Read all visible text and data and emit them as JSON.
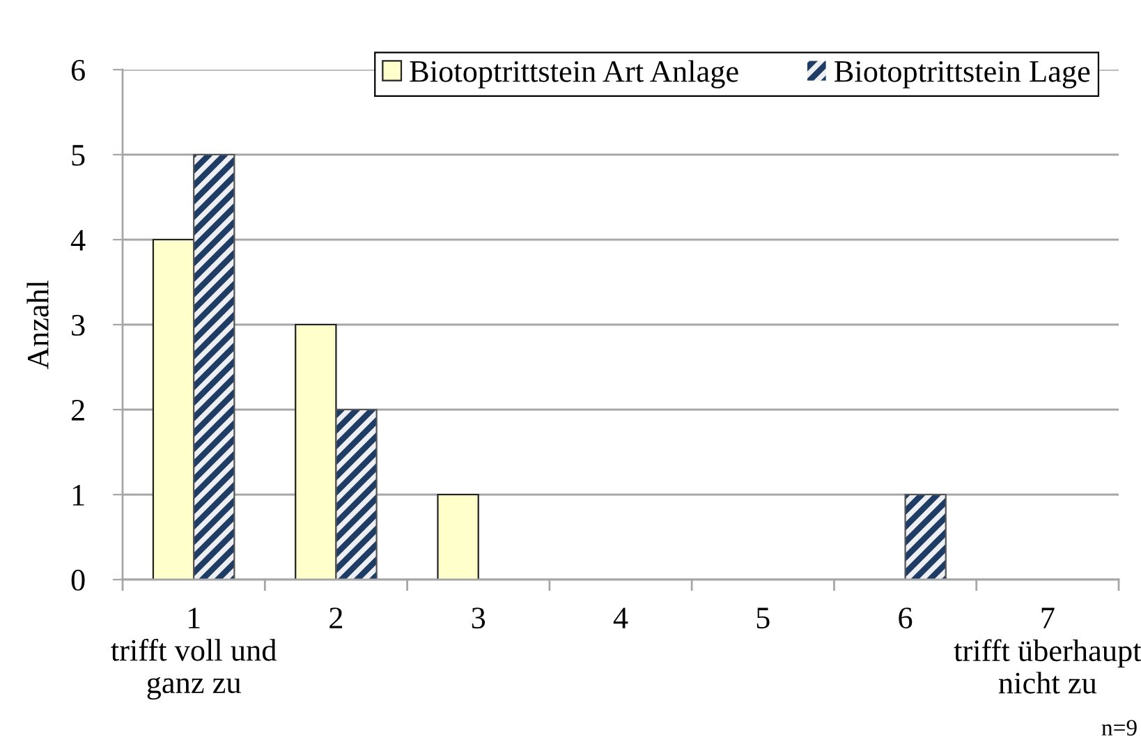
{
  "chart_data": {
    "type": "bar",
    "categories": [
      "1\ntrifft voll und\nganz zu",
      "2",
      "3",
      "4",
      "5",
      "6",
      "7\ntrifft überhaupt\nnicht zu"
    ],
    "series": [
      {
        "name": "Biotoptrittstein Art Anlage",
        "color": "#ffffcc",
        "values": [
          4,
          3,
          1,
          0,
          0,
          0,
          0
        ]
      },
      {
        "name": "Biotoptrittstein Lage",
        "color": "#1f3c64",
        "values": [
          5,
          2,
          0,
          0,
          0,
          1,
          0
        ]
      }
    ],
    "ylabel": "Anzahl",
    "ylim": [
      0,
      6
    ],
    "yticks": [
      0,
      1,
      2,
      3,
      4,
      5,
      6
    ],
    "grid": "y",
    "legend": "top right",
    "annotations": [
      "n=9"
    ]
  }
}
